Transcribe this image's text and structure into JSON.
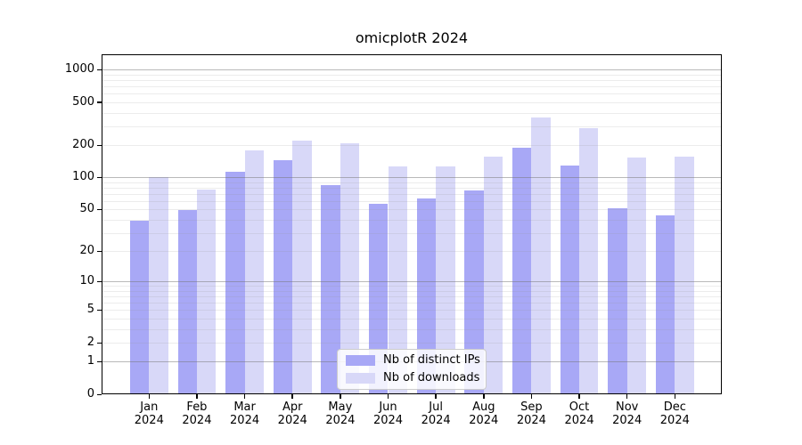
{
  "chart_data": {
    "type": "bar",
    "title": "omicplotR 2024",
    "categories": [
      "Jan 2024",
      "Feb 2024",
      "Mar 2024",
      "Apr 2024",
      "May 2024",
      "Jun 2024",
      "Jul 2024",
      "Aug 2024",
      "Sep 2024",
      "Oct 2024",
      "Nov 2024",
      "Dec 2024"
    ],
    "series": [
      {
        "name": "Nb of distinct IPs",
        "color": "#a8a8f6",
        "values": [
          39,
          49,
          114,
          146,
          84,
          57,
          63,
          76,
          190,
          128,
          51,
          44
        ]
      },
      {
        "name": "Nb of downloads",
        "color": "#d8d8f8",
        "values": [
          100,
          77,
          178,
          220,
          208,
          127,
          127,
          157,
          363,
          286,
          153,
          156
        ]
      }
    ],
    "yscale": "log1p",
    "yticks": [
      0,
      1,
      2,
      5,
      10,
      20,
      50,
      100,
      200,
      500,
      1000
    ],
    "ylim": [
      0,
      1400
    ],
    "xlabel": "",
    "ylabel": "",
    "grid": "horizontal, minor log lines, majors at powers of 10",
    "legend_position": "inside lower center"
  },
  "legend": {
    "items": [
      {
        "label": "Nb of distinct IPs",
        "color": "#a8a8f6"
      },
      {
        "label": "Nb of downloads",
        "color": "#d8d8f8"
      }
    ]
  },
  "colors": {
    "series_dark": "#a8a8f6",
    "series_light": "#d8d8f8",
    "grid_major": "#b5b5b5",
    "grid_minor": "#ececec",
    "axis": "#000000",
    "background": "#ffffff"
  }
}
